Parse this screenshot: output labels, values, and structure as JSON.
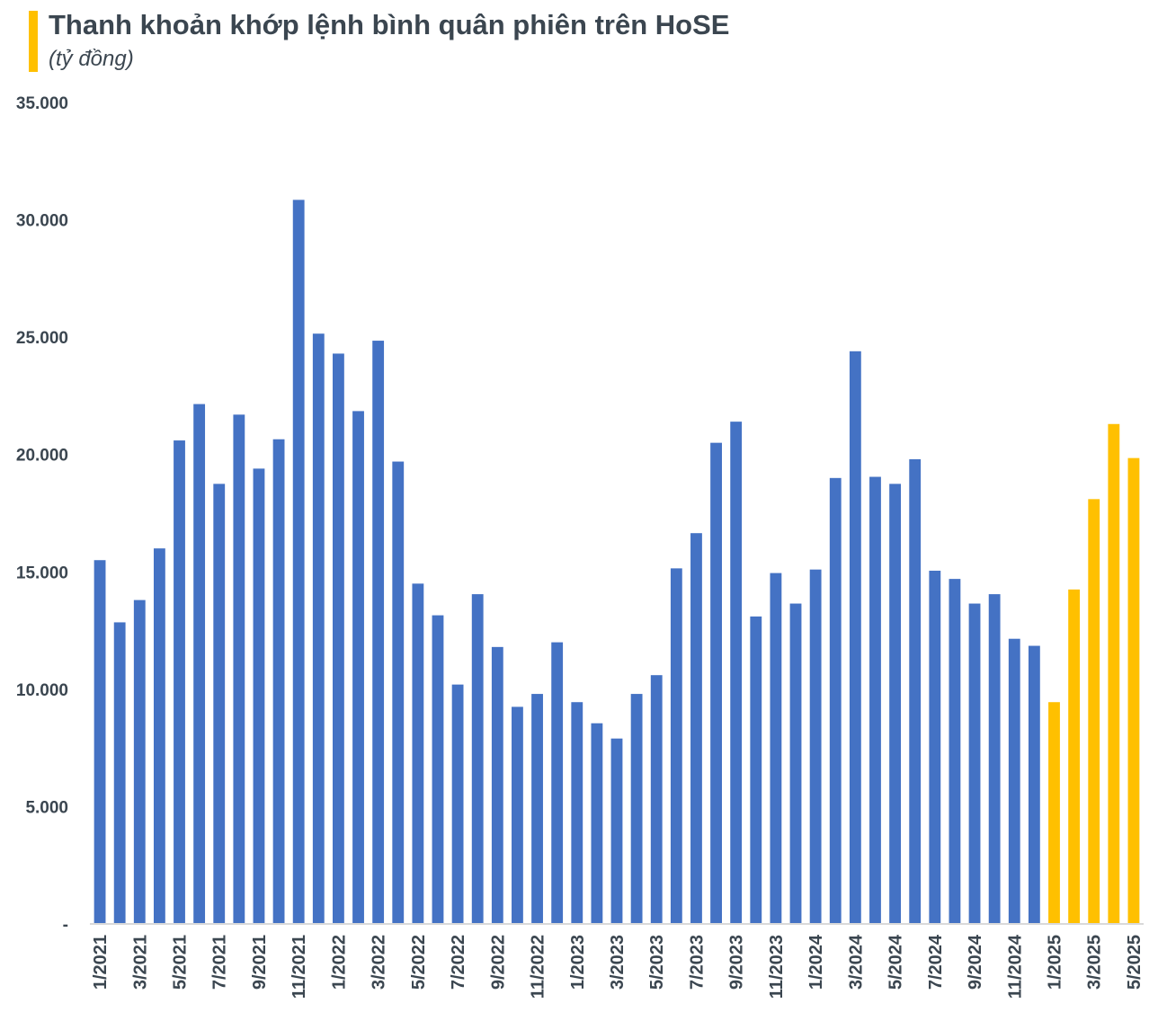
{
  "chart_data": {
    "type": "bar",
    "title": "Thanh khoản khớp lệnh bình quân phiên trên HoSE",
    "subtitle": "(tỷ đồng)",
    "ylim": [
      0,
      35000
    ],
    "yticks": [
      "-",
      "5.000",
      "10.000",
      "15.000",
      "20.000",
      "25.000",
      "30.000",
      "35.000"
    ],
    "grid": false,
    "colors": {
      "default": "#4472c4",
      "highlight": "#ffc000",
      "accent_bar": "#ffc000"
    },
    "categories": [
      "1/2021",
      "2/2021",
      "3/2021",
      "4/2021",
      "5/2021",
      "6/2021",
      "7/2021",
      "8/2021",
      "9/2021",
      "10/2021",
      "11/2021",
      "12/2021",
      "1/2022",
      "2/2022",
      "3/2022",
      "4/2022",
      "5/2022",
      "6/2022",
      "7/2022",
      "8/2022",
      "9/2022",
      "10/2022",
      "11/2022",
      "12/2022",
      "1/2023",
      "2/2023",
      "3/2023",
      "4/2023",
      "5/2023",
      "6/2023",
      "7/2023",
      "8/2023",
      "9/2023",
      "10/2023",
      "11/2023",
      "12/2023",
      "1/2024",
      "2/2024",
      "3/2024",
      "4/2024",
      "5/2024",
      "6/2024",
      "7/2024",
      "8/2024",
      "9/2024",
      "10/2024",
      "11/2024",
      "12/2024",
      "1/2025",
      "2/2025",
      "3/2025",
      "4/2025",
      "5/2025"
    ],
    "xtick_labels": [
      "1/2021",
      "",
      "3/2021",
      "",
      "5/2021",
      "",
      "7/2021",
      "",
      "9/2021",
      "",
      "11/2021",
      "",
      "1/2022",
      "",
      "3/2022",
      "",
      "5/2022",
      "",
      "7/2022",
      "",
      "9/2022",
      "",
      "11/2022",
      "",
      "1/2023",
      "",
      "3/2023",
      "",
      "5/2023",
      "",
      "7/2023",
      "",
      "9/2023",
      "",
      "11/2023",
      "",
      "1/2024",
      "",
      "3/2024",
      "",
      "5/2024",
      "",
      "7/2024",
      "",
      "9/2024",
      "",
      "11/2024",
      "",
      "1/2025",
      "",
      "3/2025",
      "",
      "5/2025"
    ],
    "values": [
      15500,
      12850,
      13800,
      16000,
      20600,
      22150,
      18750,
      21700,
      19400,
      20650,
      30850,
      25150,
      24300,
      21850,
      24850,
      19700,
      14500,
      13150,
      10200,
      14050,
      11800,
      9250,
      9800,
      12000,
      9450,
      8550,
      7900,
      9800,
      10600,
      15150,
      16650,
      20500,
      21400,
      13100,
      14950,
      13650,
      15100,
      19000,
      24400,
      19050,
      18750,
      19800,
      15050,
      14700,
      13650,
      14050,
      12150,
      11850,
      9450,
      14250,
      18100,
      21300,
      19850
    ],
    "highlight_from_index": 48
  }
}
